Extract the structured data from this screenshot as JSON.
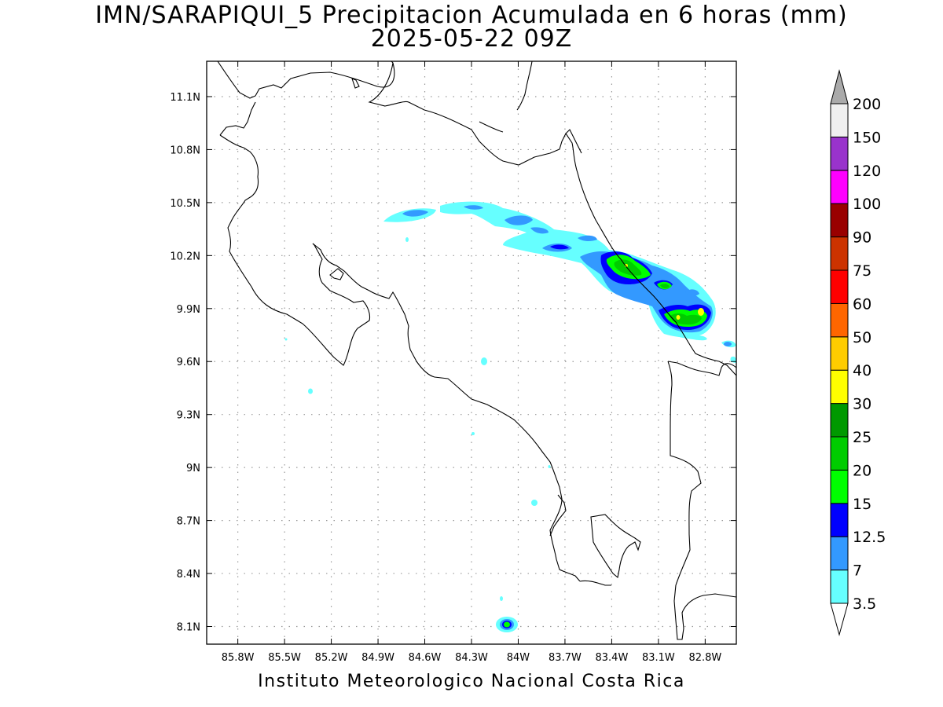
{
  "title_line1": "IMN/SARAPIQUI_5 Precipitacion Acumulada en 6 horas (mm)",
  "title_line2": "2025-05-22 09Z",
  "footer": "Instituto Meteorologico Nacional Costa Rica",
  "map": {
    "lon_min": -86.0,
    "lon_max": -82.6,
    "lat_min": 8.0,
    "lat_max": 11.3,
    "lon_ticks": [
      "85.8W",
      "85.5W",
      "85.2W",
      "84.9W",
      "84.6W",
      "84.3W",
      "84W",
      "83.7W",
      "83.4W",
      "83.1W",
      "82.8W"
    ],
    "lat_ticks": [
      "11.1N",
      "10.8N",
      "10.5N",
      "10.2N",
      "9.9N",
      "9.6N",
      "9.3N",
      "9N",
      "8.7N",
      "8.4N",
      "8.1N"
    ],
    "grid": "dotted"
  },
  "colorbar": {
    "labels": [
      "3.5",
      "7",
      "12.5",
      "15",
      "20",
      "25",
      "30",
      "40",
      "50",
      "60",
      "75",
      "90",
      "100",
      "120",
      "150",
      "200"
    ],
    "colors": [
      "#66ffff",
      "#3399ff",
      "#0000ff",
      "#00ff00",
      "#00cc00",
      "#009900",
      "#ffff00",
      "#ffcc00",
      "#ff6600",
      "#ff0000",
      "#cc3300",
      "#990000",
      "#ff00ff",
      "#9933cc",
      "#f0f0f0",
      "#aaaaaa"
    ]
  }
}
